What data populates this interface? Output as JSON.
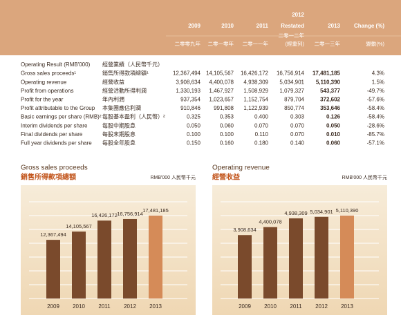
{
  "table": {
    "columns": [
      {
        "label": "2009",
        "zh": "二零零九年"
      },
      {
        "label": "2010",
        "zh": "二零一零年"
      },
      {
        "label": "2011",
        "zh": "二零一一年"
      },
      {
        "label": "2012",
        "note": "Restated",
        "zh": "二零一二年",
        "zh_note": "(經重列)"
      },
      {
        "label": "2013",
        "zh": "二零一三年"
      },
      {
        "label": "Change (%)",
        "zh": "變動(%)"
      }
    ],
    "rows": [
      {
        "label": "Operating Result (RMB'000)",
        "label_zh": "經營業績（人民幣千元）",
        "cells": []
      },
      {
        "label": "Gross sales proceeds¹",
        "label_zh": "銷售所得款項總額¹",
        "cells": [
          "12,367,494",
          "14,105,567",
          "16,426,172",
          "16,756,914",
          "17,481,185",
          "4.3%"
        ]
      },
      {
        "label": "Operating revenue",
        "label_zh": "經營收益",
        "cells": [
          "3,908,634",
          "4,400,078",
          "4,938,309",
          "5,034,901",
          "5,110,390",
          "1.5%"
        ]
      },
      {
        "label": "Profit from operations",
        "label_zh": "經營活動所得利潤",
        "cells": [
          "1,330,193",
          "1,467,927",
          "1,508,929",
          "1,079,327",
          "543,377",
          "-49.7%"
        ]
      },
      {
        "label": "Profit for the year",
        "label_zh": "年內利潤",
        "cells": [
          "937,354",
          "1,023,657",
          "1,152,754",
          "879,704",
          "372,602",
          "-57.6%"
        ]
      },
      {
        "label": "Profit attributable to the Group",
        "label_zh": "本集團應佔利潤",
        "cells": [
          "910,846",
          "991,808",
          "1,122,939",
          "850,774",
          "353,646",
          "-58.4%"
        ]
      },
      {
        "label": "Basic earnings per share (RMB)²",
        "label_zh": "每股基本盈利（人民幣）²",
        "cells": [
          "0.325",
          "0.353",
          "0.400",
          "0.303",
          "0.126",
          "-58.4%"
        ]
      },
      {
        "label": "Interim dividends per share",
        "label_zh": "每股中期股息",
        "cells": [
          "0.050",
          "0.060",
          "0.070",
          "0.070",
          "0.050",
          "-28.6%"
        ]
      },
      {
        "label": "Final dividends per share",
        "label_zh": "每股末期股息",
        "cells": [
          "0.100",
          "0.100",
          "0.110",
          "0.070",
          "0.010",
          "-85.7%"
        ]
      },
      {
        "label": "Full year dividends per share",
        "label_zh": "每股全年股息",
        "cells": [
          "0.150",
          "0.160",
          "0.180",
          "0.140",
          "0.060",
          "-57.1%"
        ]
      }
    ]
  },
  "chart_data": [
    {
      "type": "bar",
      "title": "Gross sales proceeds",
      "title_zh": "銷售所得款項總額",
      "unit": "RMB'000 人民幣千元",
      "categories": [
        "2009",
        "2010",
        "2011",
        "2012",
        "2013"
      ],
      "values": [
        12367494,
        14105567,
        16426172,
        16756914,
        17481185
      ],
      "value_labels": [
        "12,367,494",
        "14,105,567",
        "16,426,172",
        "16,756,914",
        "17,481,185"
      ],
      "colors": [
        "#7a4a2c",
        "#7a4a2c",
        "#7a4a2c",
        "#7a4a2c",
        "#d58b58"
      ]
    },
    {
      "type": "bar",
      "title": "Operating revenue",
      "title_zh": "經營收益",
      "unit": "RMB'000 人民幣千元",
      "categories": [
        "2009",
        "2010",
        "2011",
        "2012",
        "2013"
      ],
      "values": [
        3908634,
        4400078,
        4938309,
        5034901,
        5110390
      ],
      "value_labels": [
        "3,908,634",
        "4,400,078",
        "4,938,309",
        "5,034,901",
        "5,110,390"
      ],
      "colors": [
        "#7a4a2c",
        "#7a4a2c",
        "#7a4a2c",
        "#7a4a2c",
        "#d58b58"
      ]
    }
  ]
}
